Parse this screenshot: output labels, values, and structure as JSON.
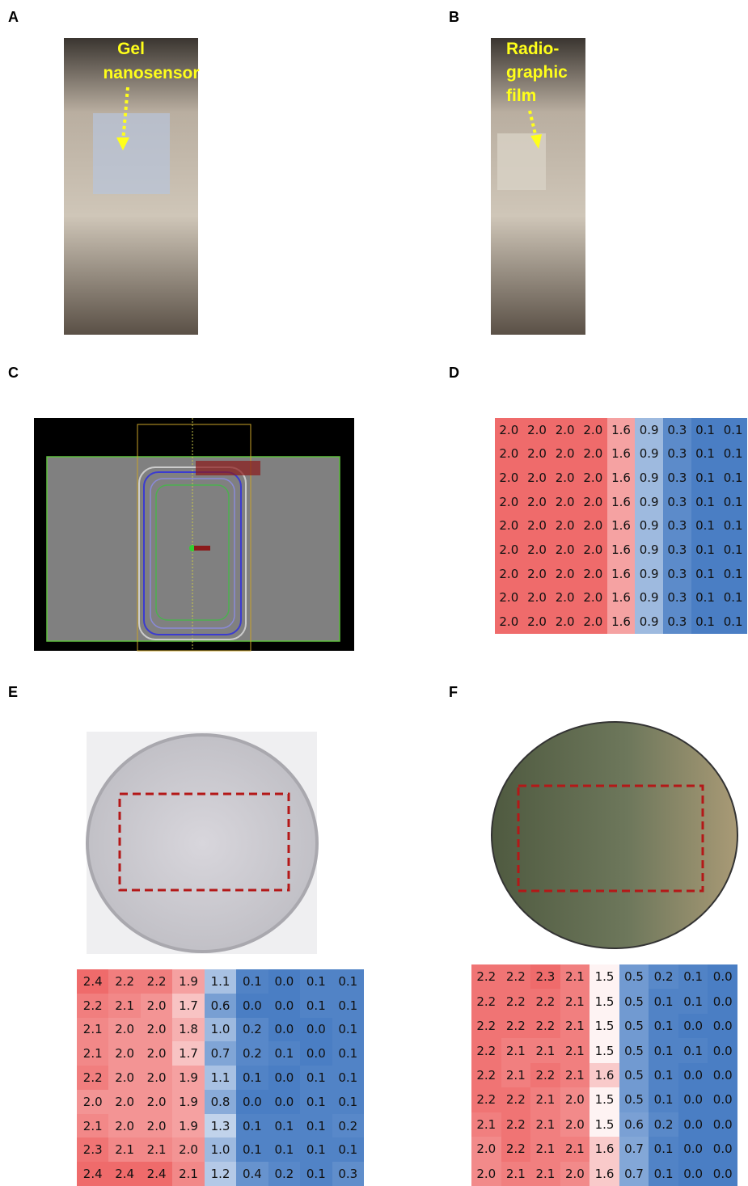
{
  "panel_labels": [
    "A",
    "B",
    "C",
    "D",
    "E",
    "F"
  ],
  "annotations": {
    "gel": [
      "Gel",
      "nanosensor"
    ],
    "film": [
      "Radio-",
      "graphic",
      "film"
    ]
  },
  "tables": {
    "D": [
      [
        "2.0",
        "2.0",
        "2.0",
        "2.0",
        "1.6",
        "0.9",
        "0.3",
        "0.1",
        "0.1"
      ],
      [
        "2.0",
        "2.0",
        "2.0",
        "2.0",
        "1.6",
        "0.9",
        "0.3",
        "0.1",
        "0.1"
      ],
      [
        "2.0",
        "2.0",
        "2.0",
        "2.0",
        "1.6",
        "0.9",
        "0.3",
        "0.1",
        "0.1"
      ],
      [
        "2.0",
        "2.0",
        "2.0",
        "2.0",
        "1.6",
        "0.9",
        "0.3",
        "0.1",
        "0.1"
      ],
      [
        "2.0",
        "2.0",
        "2.0",
        "2.0",
        "1.6",
        "0.9",
        "0.3",
        "0.1",
        "0.1"
      ],
      [
        "2.0",
        "2.0",
        "2.0",
        "2.0",
        "1.6",
        "0.9",
        "0.3",
        "0.1",
        "0.1"
      ],
      [
        "2.0",
        "2.0",
        "2.0",
        "2.0",
        "1.6",
        "0.9",
        "0.3",
        "0.1",
        "0.1"
      ],
      [
        "2.0",
        "2.0",
        "2.0",
        "2.0",
        "1.6",
        "0.9",
        "0.3",
        "0.1",
        "0.1"
      ],
      [
        "2.0",
        "2.0",
        "2.0",
        "2.0",
        "1.6",
        "0.9",
        "0.3",
        "0.1",
        "0.1"
      ]
    ],
    "E": [
      [
        "2.4",
        "2.2",
        "2.2",
        "1.9",
        "1.1",
        "0.1",
        "0.0",
        "0.1",
        "0.1"
      ],
      [
        "2.2",
        "2.1",
        "2.0",
        "1.7",
        "0.6",
        "0.0",
        "0.0",
        "0.1",
        "0.1"
      ],
      [
        "2.1",
        "2.0",
        "2.0",
        "1.8",
        "1.0",
        "0.2",
        "0.0",
        "0.0",
        "0.1"
      ],
      [
        "2.1",
        "2.0",
        "2.0",
        "1.7",
        "0.7",
        "0.2",
        "0.1",
        "0.0",
        "0.1"
      ],
      [
        "2.2",
        "2.0",
        "2.0",
        "1.9",
        "1.1",
        "0.1",
        "0.0",
        "0.1",
        "0.1"
      ],
      [
        "2.0",
        "2.0",
        "2.0",
        "1.9",
        "0.8",
        "0.0",
        "0.0",
        "0.1",
        "0.1"
      ],
      [
        "2.1",
        "2.0",
        "2.0",
        "1.9",
        "1.3",
        "0.1",
        "0.1",
        "0.1",
        "0.2"
      ],
      [
        "2.3",
        "2.1",
        "2.1",
        "2.0",
        "1.0",
        "0.1",
        "0.1",
        "0.1",
        "0.1"
      ],
      [
        "2.4",
        "2.4",
        "2.4",
        "2.1",
        "1.2",
        "0.4",
        "0.2",
        "0.1",
        "0.3"
      ]
    ],
    "F": [
      [
        "2.2",
        "2.2",
        "2.3",
        "2.1",
        "1.5",
        "0.5",
        "0.2",
        "0.1",
        "0.0"
      ],
      [
        "2.2",
        "2.2",
        "2.2",
        "2.1",
        "1.5",
        "0.5",
        "0.1",
        "0.1",
        "0.0"
      ],
      [
        "2.2",
        "2.2",
        "2.2",
        "2.1",
        "1.5",
        "0.5",
        "0.1",
        "0.0",
        "0.0"
      ],
      [
        "2.2",
        "2.1",
        "2.1",
        "2.1",
        "1.5",
        "0.5",
        "0.1",
        "0.1",
        "0.0"
      ],
      [
        "2.2",
        "2.1",
        "2.2",
        "2.1",
        "1.6",
        "0.5",
        "0.1",
        "0.0",
        "0.0"
      ],
      [
        "2.2",
        "2.2",
        "2.1",
        "2.0",
        "1.5",
        "0.5",
        "0.1",
        "0.0",
        "0.0"
      ],
      [
        "2.1",
        "2.2",
        "2.1",
        "2.0",
        "1.5",
        "0.6",
        "0.2",
        "0.0",
        "0.0"
      ],
      [
        "2.0",
        "2.2",
        "2.1",
        "2.1",
        "1.6",
        "0.7",
        "0.1",
        "0.0",
        "0.0"
      ],
      [
        "2.0",
        "2.1",
        "2.1",
        "2.0",
        "1.6",
        "0.7",
        "0.1",
        "0.0",
        "0.0"
      ]
    ]
  }
}
